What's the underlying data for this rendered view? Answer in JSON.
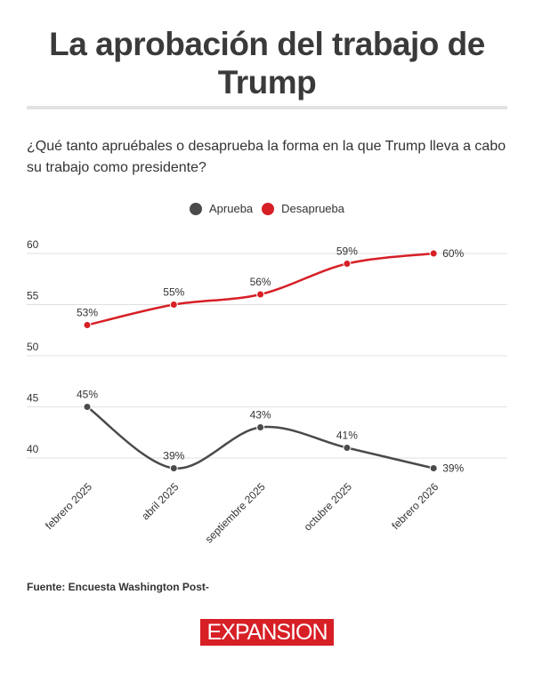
{
  "header": {
    "title": "La aprobación del trabajo de Trump",
    "subtitle": "¿Qué tanto apruébales o desaprueba la forma en la que Trump lleva a cabo su trabajo como presidente?"
  },
  "footer": {
    "source": "Fuente: Encuesta Washington Post-",
    "logo": "EXPANSION"
  },
  "chart_data": {
    "type": "line",
    "title": "La aprobación del trabajo de Trump",
    "categories": [
      "febrero 2025",
      "abril 2025",
      "septiembre 2025",
      "octubre 2025",
      "febrero 2026"
    ],
    "series": [
      {
        "name": "Aprueba",
        "color": "#4a4a4a",
        "values": [
          45,
          39,
          43,
          41,
          39
        ],
        "labels": [
          "45%",
          "39%",
          "43%",
          "41%",
          "39%"
        ]
      },
      {
        "name": "Desaprueba",
        "color": "#d71f26",
        "values": [
          53,
          55,
          56,
          59,
          60
        ],
        "labels": [
          "53%",
          "55%",
          "56%",
          "59%",
          "60%"
        ]
      }
    ],
    "yticks": [
      "40",
      "45",
      "50",
      "55",
      "60"
    ],
    "ylim": [
      38,
      61
    ],
    "grid": true,
    "legend": "top-center",
    "smooth": true
  }
}
